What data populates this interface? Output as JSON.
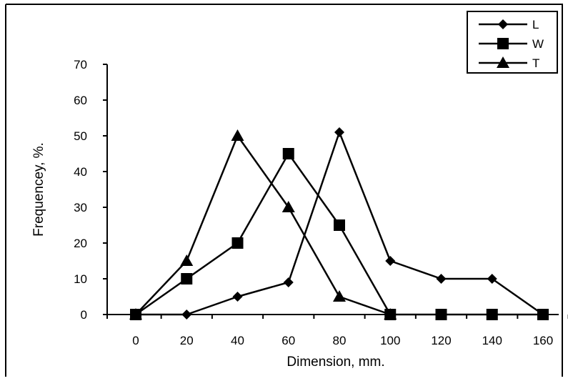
{
  "chart_data": {
    "type": "line",
    "title": "",
    "xlabel": "Dimension, mm.",
    "ylabel": "Frequencey, %.",
    "x": [
      0,
      20,
      40,
      60,
      80,
      100,
      120,
      140,
      160
    ],
    "x_ticks": [
      "0",
      "20",
      "40",
      "60",
      "80",
      "100",
      "120",
      "140",
      "160"
    ],
    "y_ticks": [
      "0",
      "10",
      "20",
      "30",
      "40",
      "50",
      "60",
      "70"
    ],
    "xlim": [
      0,
      160
    ],
    "ylim": [
      0,
      70
    ],
    "grid": false,
    "legend_position": "top-right",
    "series": [
      {
        "name": "L",
        "marker": "diamond",
        "color": "#000000",
        "values": [
          0,
          0,
          5,
          9,
          51,
          15,
          10,
          10,
          0
        ]
      },
      {
        "name": "W",
        "marker": "square",
        "color": "#000000",
        "values": [
          0,
          10,
          20,
          45,
          25,
          0,
          0,
          0,
          0
        ]
      },
      {
        "name": "T",
        "marker": "triangle",
        "color": "#000000",
        "values": [
          0,
          15,
          50,
          30,
          5,
          0,
          null,
          null,
          null
        ]
      }
    ]
  }
}
